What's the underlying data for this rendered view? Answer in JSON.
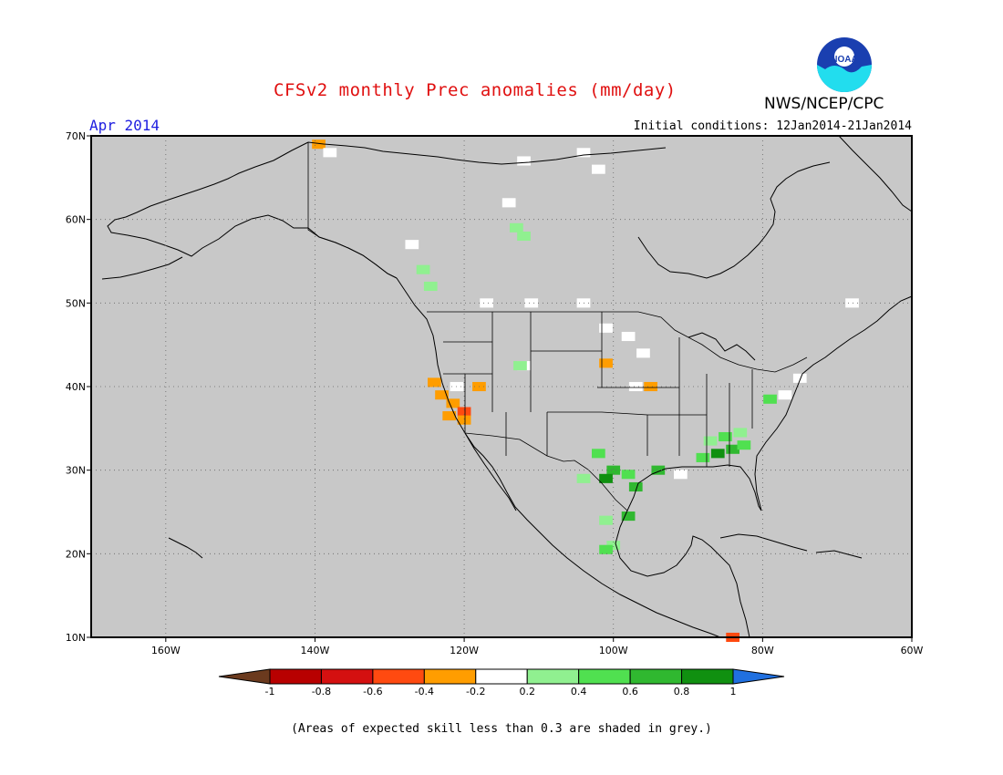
{
  "header": {
    "title": "CFSv2 monthly Prec anomalies (mm/day)",
    "agency": "NWS/NCEP/CPC",
    "logo_text": "NOAA",
    "target_month": "Apr 2014",
    "initial_conditions": "Initial conditions: 12Jan2014-21Jan2014"
  },
  "map": {
    "lon_range": [
      -170,
      -60
    ],
    "lat_range": [
      10,
      70
    ],
    "x_ticks": [
      {
        "lon": -160,
        "label": "160W"
      },
      {
        "lon": -140,
        "label": "140W"
      },
      {
        "lon": -120,
        "label": "120W"
      },
      {
        "lon": -100,
        "label": "100W"
      },
      {
        "lon": -80,
        "label": "80W"
      },
      {
        "lon": -60,
        "label": "60W"
      }
    ],
    "y_ticks": [
      {
        "lat": 10,
        "label": "10N"
      },
      {
        "lat": 20,
        "label": "20N"
      },
      {
        "lat": 30,
        "label": "30N"
      },
      {
        "lat": 40,
        "label": "40N"
      },
      {
        "lat": 50,
        "label": "50N"
      },
      {
        "lat": 60,
        "label": "60N"
      },
      {
        "lat": 70,
        "label": "70N"
      }
    ],
    "grid": true,
    "background_color": "#c8c8c8",
    "anomaly_cells": [
      {
        "lon": -139.5,
        "lat": 69,
        "class": "-0.4"
      },
      {
        "lon": -138,
        "lat": 68,
        "class": "0"
      },
      {
        "lon": -112,
        "lat": 67,
        "class": "0"
      },
      {
        "lon": -104,
        "lat": 68,
        "class": "0"
      },
      {
        "lon": -102,
        "lat": 66,
        "class": "0"
      },
      {
        "lon": -114,
        "lat": 62,
        "class": "0"
      },
      {
        "lon": -113,
        "lat": 59,
        "class": "0.2"
      },
      {
        "lon": -112,
        "lat": 58,
        "class": "0.2"
      },
      {
        "lon": -127,
        "lat": 57,
        "class": "0"
      },
      {
        "lon": -125.5,
        "lat": 54,
        "class": "0.2"
      },
      {
        "lon": -124.5,
        "lat": 52,
        "class": "0.2"
      },
      {
        "lon": -117,
        "lat": 50,
        "class": "0"
      },
      {
        "lon": -111,
        "lat": 50,
        "class": "0"
      },
      {
        "lon": -104,
        "lat": 50,
        "class": "0"
      },
      {
        "lon": -101,
        "lat": 47,
        "class": "0"
      },
      {
        "lon": -98,
        "lat": 46,
        "class": "0"
      },
      {
        "lon": -96,
        "lat": 44,
        "class": "0"
      },
      {
        "lon": -101,
        "lat": 42.8,
        "class": "-0.4"
      },
      {
        "lon": -112,
        "lat": 42.5,
        "class": "0"
      },
      {
        "lon": -112.5,
        "lat": 42.5,
        "class": "0.2"
      },
      {
        "lon": -97,
        "lat": 40,
        "class": "0"
      },
      {
        "lon": -95,
        "lat": 40,
        "class": "-0.4"
      },
      {
        "lon": -124,
        "lat": 40.5,
        "class": "-0.4"
      },
      {
        "lon": -123,
        "lat": 39,
        "class": "-0.4"
      },
      {
        "lon": -121.5,
        "lat": 38,
        "class": "-0.4"
      },
      {
        "lon": -120,
        "lat": 37,
        "class": "-0.6"
      },
      {
        "lon": -120,
        "lat": 36,
        "class": "-0.4"
      },
      {
        "lon": -122,
        "lat": 36.5,
        "class": "-0.4"
      },
      {
        "lon": -118,
        "lat": 40,
        "class": "-0.4"
      },
      {
        "lon": -121,
        "lat": 40,
        "class": "0"
      },
      {
        "lon": -102,
        "lat": 32,
        "class": "0.4"
      },
      {
        "lon": -100,
        "lat": 30,
        "class": "0.6"
      },
      {
        "lon": -98,
        "lat": 29.5,
        "class": "0.4"
      },
      {
        "lon": -97,
        "lat": 28,
        "class": "0.6"
      },
      {
        "lon": -101,
        "lat": 29,
        "class": "0.8"
      },
      {
        "lon": -104,
        "lat": 29,
        "class": "0.2"
      },
      {
        "lon": -101,
        "lat": 24,
        "class": "0.2"
      },
      {
        "lon": -98,
        "lat": 24.5,
        "class": "0.6"
      },
      {
        "lon": -100,
        "lat": 21,
        "class": "0.2"
      },
      {
        "lon": -101,
        "lat": 20.5,
        "class": "0.4"
      },
      {
        "lon": -94,
        "lat": 30,
        "class": "0.6"
      },
      {
        "lon": -91,
        "lat": 29.5,
        "class": "0"
      },
      {
        "lon": -88,
        "lat": 31.5,
        "class": "0.4"
      },
      {
        "lon": -86,
        "lat": 32,
        "class": "0.8"
      },
      {
        "lon": -84,
        "lat": 32.5,
        "class": "0.6"
      },
      {
        "lon": -82.5,
        "lat": 33,
        "class": "0.4"
      },
      {
        "lon": -85,
        "lat": 34,
        "class": "0.4"
      },
      {
        "lon": -83,
        "lat": 34.5,
        "class": "0.2"
      },
      {
        "lon": -87,
        "lat": 33.5,
        "class": "0.2"
      },
      {
        "lon": -79,
        "lat": 38.5,
        "class": "0.4"
      },
      {
        "lon": -77,
        "lat": 39,
        "class": "0"
      },
      {
        "lon": -75,
        "lat": 41,
        "class": "0"
      },
      {
        "lon": -68,
        "lat": 50,
        "class": "0"
      },
      {
        "lon": -84,
        "lat": 10,
        "class": "-0.6"
      }
    ]
  },
  "colorbar": {
    "tick_labels": [
      "-1",
      "-0.8",
      "-0.6",
      "-0.4",
      "-0.2",
      "0.2",
      "0.4",
      "0.6",
      "0.8",
      "1"
    ],
    "colors": [
      "#6b3a1e",
      "#b80000",
      "#d41010",
      "#ff4a10",
      "#ff9d00",
      "#ffffff",
      "#90f090",
      "#50e050",
      "#30b830",
      "#109010",
      "#2070e0"
    ]
  },
  "class_colors": {
    "-0.6": "#ff4a10",
    "-0.4": "#ff9d00",
    "0": "#ffffff",
    "0.2": "#90f090",
    "0.4": "#50e050",
    "0.6": "#30b830",
    "0.8": "#109010"
  },
  "footnote": "(Areas of expected skill less than 0.3 are shaded in grey.)"
}
